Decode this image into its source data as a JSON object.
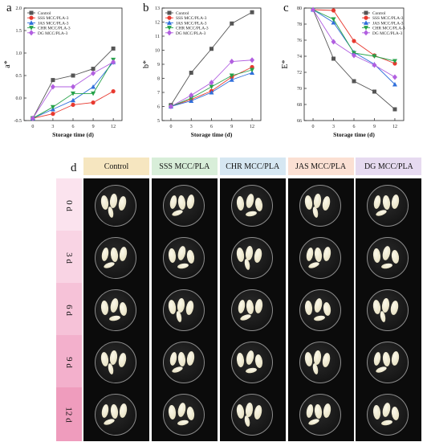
{
  "panels": {
    "a": "a",
    "b": "b",
    "c": "c",
    "d": "d"
  },
  "chart_data": [
    {
      "type": "line",
      "panel": "a",
      "xlabel": "Storage time (d)",
      "ylabel": "a*",
      "x": [
        0,
        3,
        6,
        9,
        12
      ],
      "xticks": [
        "0",
        "3",
        "6",
        "9",
        "12"
      ],
      "ylim": [
        -0.5,
        2.0
      ],
      "yticks": [
        -0.5,
        0.0,
        0.5,
        1.0,
        1.5,
        2.0
      ],
      "ytick_labels": [
        "-0.5",
        "0.0",
        "0.5",
        "1.0",
        "1.5",
        "2.0"
      ],
      "legend_position": "top-left",
      "series": [
        {
          "name": "Control",
          "color": "#555555",
          "marker": "square",
          "values": [
            -0.45,
            0.4,
            0.5,
            0.65,
            1.1
          ]
        },
        {
          "name": "SSS MCC/PLA-3",
          "color": "#e8392f",
          "marker": "circle",
          "values": [
            -0.45,
            -0.35,
            -0.15,
            -0.1,
            0.15
          ]
        },
        {
          "name": "JAS MCC/PLA-3",
          "color": "#2f6fdb",
          "marker": "triangle",
          "values": [
            -0.45,
            -0.25,
            -0.05,
            0.25,
            0.8
          ]
        },
        {
          "name": "CHR MCC/PLA-3",
          "color": "#27a34a",
          "marker": "triangle-down",
          "values": [
            -0.45,
            -0.2,
            0.1,
            0.1,
            0.85
          ]
        },
        {
          "name": "DG MCC/PLA-3",
          "color": "#b15fe0",
          "marker": "diamond",
          "values": [
            -0.45,
            0.25,
            0.25,
            0.55,
            0.8
          ]
        }
      ]
    },
    {
      "type": "line",
      "panel": "b",
      "xlabel": "Storage time (d)",
      "ylabel": "b*",
      "x": [
        0,
        3,
        6,
        9,
        12
      ],
      "xticks": [
        "0",
        "3",
        "6",
        "9",
        "12"
      ],
      "ylim": [
        5,
        13
      ],
      "yticks": [
        5,
        6,
        7,
        8,
        9,
        10,
        11,
        12,
        13
      ],
      "ytick_labels": [
        "5",
        "6",
        "7",
        "8",
        "9",
        "10",
        "11",
        "12",
        "13"
      ],
      "legend_position": "top-left",
      "series": [
        {
          "name": "Control",
          "color": "#555555",
          "marker": "square",
          "values": [
            6.1,
            8.4,
            10.1,
            11.9,
            12.7
          ]
        },
        {
          "name": "SSS MCC/PLA-3",
          "color": "#e8392f",
          "marker": "circle",
          "values": [
            6.0,
            6.5,
            7.1,
            8.1,
            8.8
          ]
        },
        {
          "name": "JAS MCC/PLA-3",
          "color": "#2f6fdb",
          "marker": "triangle",
          "values": [
            6.0,
            6.4,
            7.0,
            7.9,
            8.4
          ]
        },
        {
          "name": "CHR MCC/PLA-3",
          "color": "#27a34a",
          "marker": "triangle-down",
          "values": [
            6.0,
            6.6,
            7.4,
            8.2,
            8.6
          ]
        },
        {
          "name": "DG MCC/PLA-3",
          "color": "#b15fe0",
          "marker": "diamond",
          "values": [
            6.0,
            6.8,
            7.7,
            9.2,
            9.3
          ]
        }
      ]
    },
    {
      "type": "line",
      "panel": "c",
      "xlabel": "Storage time (d)",
      "ylabel": "E*",
      "x": [
        0,
        3,
        6,
        9,
        12
      ],
      "xticks": [
        "0",
        "3",
        "6",
        "9",
        "12"
      ],
      "ylim": [
        66,
        80
      ],
      "yticks": [
        66,
        68,
        70,
        72,
        74,
        76,
        78,
        80
      ],
      "ytick_labels": [
        "66",
        "68",
        "70",
        "72",
        "74",
        "76",
        "78",
        "80"
      ],
      "legend_position": "top-right",
      "series": [
        {
          "name": "Control",
          "color": "#555555",
          "marker": "square",
          "values": [
            79.8,
            73.7,
            70.9,
            69.6,
            67.4
          ]
        },
        {
          "name": "SSS MCC/PLA-3",
          "color": "#e8392f",
          "marker": "circle",
          "values": [
            79.8,
            79.7,
            75.9,
            74.1,
            73.1
          ]
        },
        {
          "name": "JAS MCC/PLA-3",
          "color": "#2f6fdb",
          "marker": "triangle",
          "values": [
            79.8,
            78.2,
            74.5,
            73.0,
            70.5
          ]
        },
        {
          "name": "CHR MCC/PLA-3",
          "color": "#27a34a",
          "marker": "triangle-down",
          "values": [
            79.8,
            78.6,
            74.4,
            74.0,
            73.4
          ]
        },
        {
          "name": "DG MCC/PLA-3",
          "color": "#b15fe0",
          "marker": "diamond",
          "values": [
            79.8,
            75.8,
            74.1,
            72.9,
            71.4
          ]
        }
      ]
    }
  ],
  "photo_grid": {
    "columns": [
      {
        "label": "Control",
        "color": "#f6e6c0"
      },
      {
        "label": "SSS MCC/PLA",
        "color": "#d8eed9"
      },
      {
        "label": "CHR MCC/PLA",
        "color": "#d6e7f2"
      },
      {
        "label": "JAS MCC/PLA",
        "color": "#fbe0d3"
      },
      {
        "label": "DG MCC/PLA",
        "color": "#e6daf0"
      }
    ],
    "rows": [
      {
        "label": "0 d",
        "color": "#fbe3ee"
      },
      {
        "label": "3 d",
        "color": "#f9d4e4"
      },
      {
        "label": "6 d",
        "color": "#f6c2d8"
      },
      {
        "label": "9 d",
        "color": "#f3b0cc"
      },
      {
        "label": "12 d",
        "color": "#ef9cbd"
      }
    ]
  }
}
